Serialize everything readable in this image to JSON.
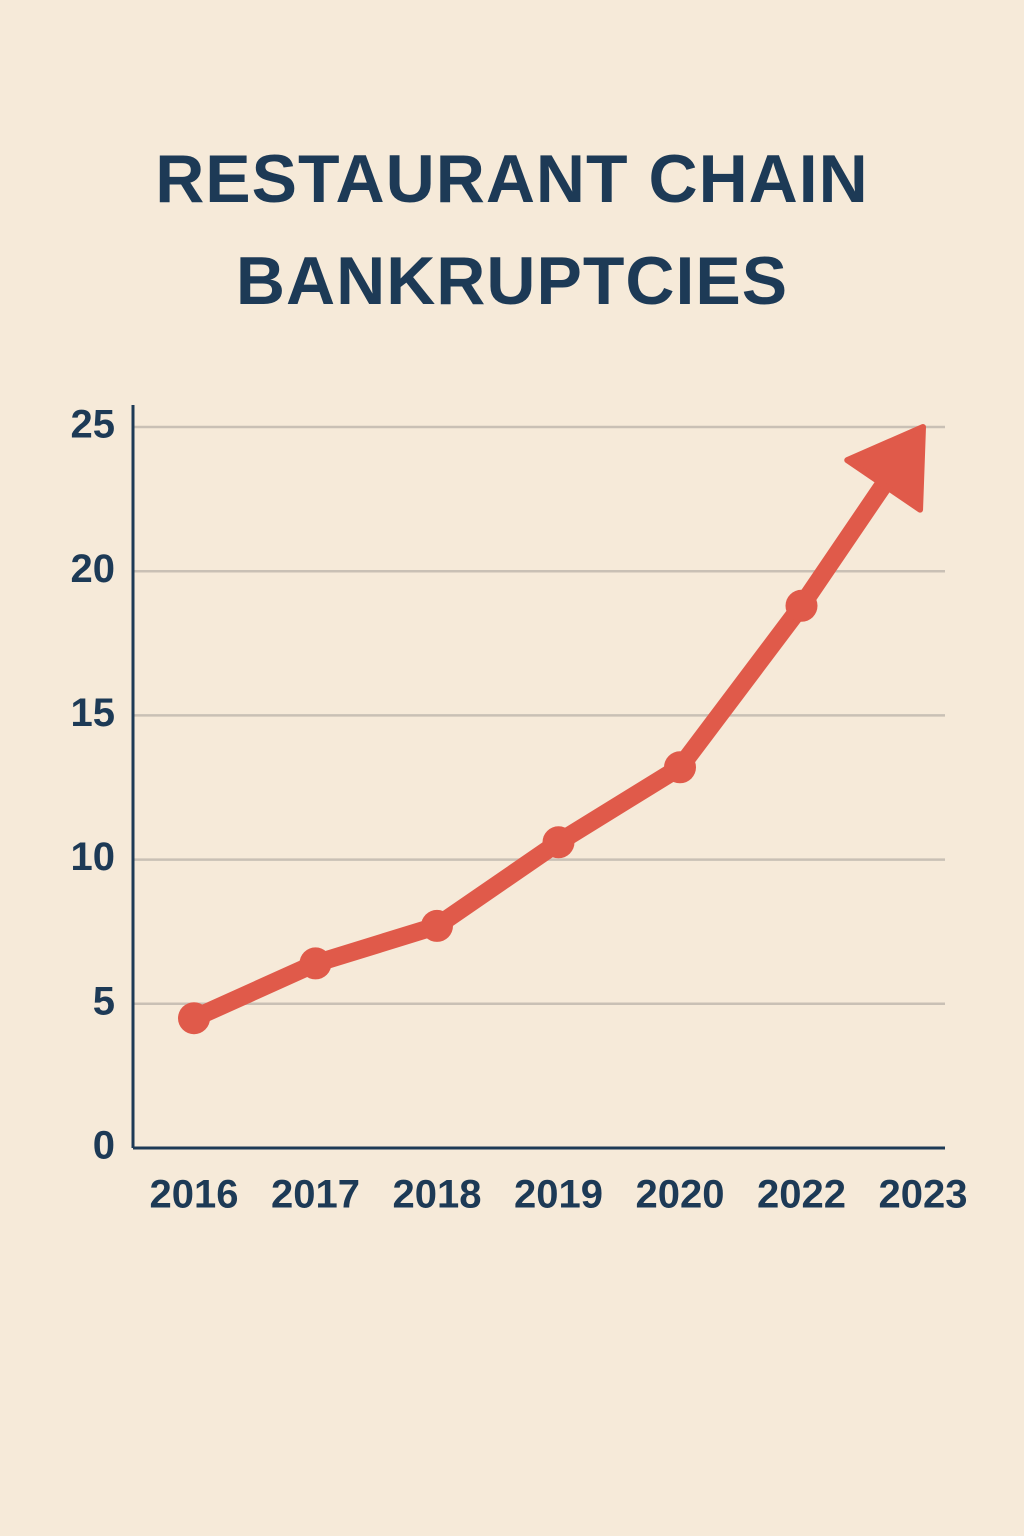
{
  "chart_data": {
    "type": "line",
    "title": "RESTAURANT CHAIN BANKRUPTCIES",
    "categories": [
      "2016",
      "2017",
      "2018",
      "2019",
      "2020",
      "2022",
      "2023"
    ],
    "values": [
      4.5,
      6.4,
      7.7,
      10.6,
      13.2,
      18.8,
      25
    ],
    "color": "#e05a4a",
    "ylim": [
      0,
      25
    ],
    "yticks": [
      0,
      5,
      10,
      15,
      20,
      25
    ],
    "grid": true
  }
}
